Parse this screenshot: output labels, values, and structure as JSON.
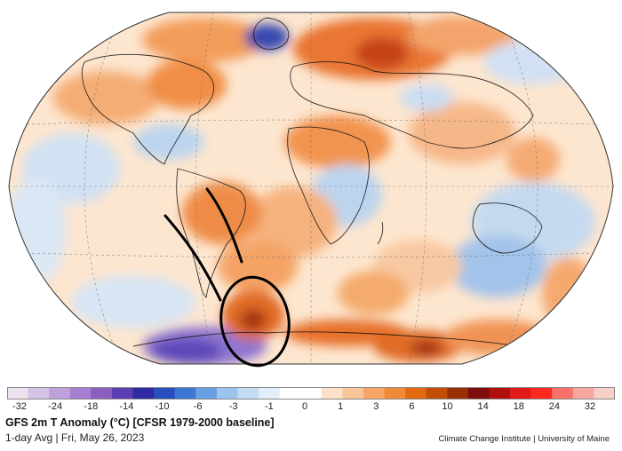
{
  "map": {
    "projection": "Robinson (global)",
    "overlay": "black hand-drawn circle and two strokes over southern South America / Antarctic Peninsula"
  },
  "colorbar": {
    "ticks": [
      "-32",
      "-24",
      "-18",
      "-14",
      "-10",
      "-6",
      "-3",
      "-1",
      "0",
      "1",
      "3",
      "6",
      "10",
      "14",
      "18",
      "24",
      "32"
    ],
    "colors": [
      "#ece1ef",
      "#d6c2e6",
      "#bea0db",
      "#a77fd0",
      "#8a5fc0",
      "#5b3fb2",
      "#2f2aa3",
      "#2a4dbf",
      "#3f78d4",
      "#6aa0e3",
      "#9cc4ee",
      "#c5dcf5",
      "#e4eefa",
      "#ffffff",
      "#ffffff",
      "#fde0c8",
      "#fbc697",
      "#f9a565",
      "#f08a36",
      "#e36a10",
      "#c24e07",
      "#9a2e05",
      "#7f0c0c",
      "#b00f0f",
      "#e41a1a",
      "#ff2a1e",
      "#f9726a",
      "#f7a6a0",
      "#f6cfc9"
    ]
  },
  "title": "GFS 2m T Anomaly (°C) [CFSR 1979-2000 baseline]",
  "subtitle": "1-day Avg | Fri, May 26, 2023",
  "credit": "Climate Change Institute | University of Maine"
}
